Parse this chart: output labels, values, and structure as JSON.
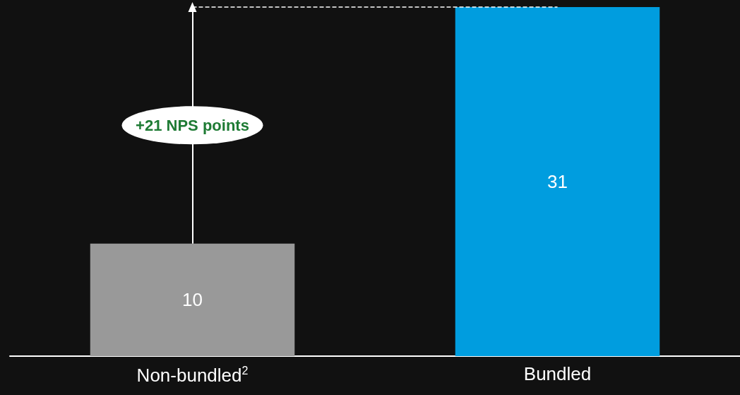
{
  "chart_data": {
    "type": "bar",
    "categories": [
      "Non-bundled$^{2}$",
      "Bundled"
    ],
    "values": [
      10,
      31
    ],
    "colors": [
      "#999999",
      "#009ddf"
    ],
    "data_labels": true,
    "annotations": [
      "+21 NPS points"
    ]
  }
}
